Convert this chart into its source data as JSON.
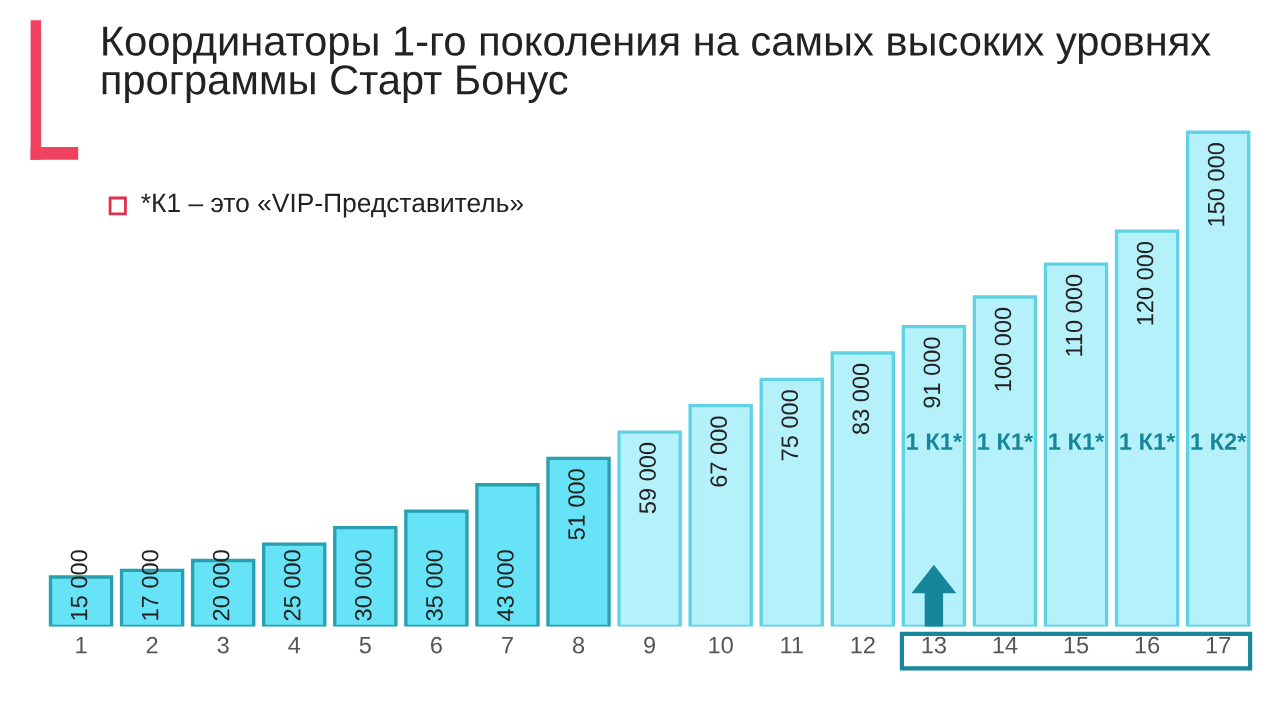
{
  "chart_data": {
    "type": "bar",
    "title": "Координаторы 1-го поколения на самых высоких уровнях\nпрограммы Старт Бонус",
    "subtitle": "*К1 – это «VIP-Представитель»",
    "categories": [
      "1",
      "2",
      "3",
      "4",
      "5",
      "6",
      "7",
      "8",
      "9",
      "10",
      "11",
      "12",
      "13",
      "14",
      "15",
      "16",
      "17"
    ],
    "values": [
      15000,
      17000,
      20000,
      25000,
      30000,
      35000,
      43000,
      51000,
      59000,
      67000,
      75000,
      83000,
      91000,
      100000,
      110000,
      120000,
      150000
    ],
    "value_labels": [
      "15 000",
      "17 000",
      "20 000",
      "25 000",
      "30 000",
      "35 000",
      "43 000",
      "51 000",
      "59 000",
      "67 000",
      "75 000",
      "83 000",
      "91 000",
      "100 000",
      "110 000",
      "120 000",
      "150 000"
    ],
    "colors": [
      "#66e3f7",
      "#66e3f7",
      "#66e3f7",
      "#66e3f7",
      "#66e3f7",
      "#66e3f7",
      "#66e3f7",
      "#66e3f7",
      "#b5f1fb",
      "#b5f1fb",
      "#b5f1fb",
      "#b5f1fb",
      "#b5f1fb",
      "#b5f1fb",
      "#b5f1fb",
      "#b5f1fb",
      "#b5f1fb"
    ],
    "annotations": [
      "1 К1*",
      "1 К1*",
      "1 К1*",
      "1 К1*",
      "1 К2*"
    ],
    "relative": false,
    "grid": false,
    "legend": false
  }
}
